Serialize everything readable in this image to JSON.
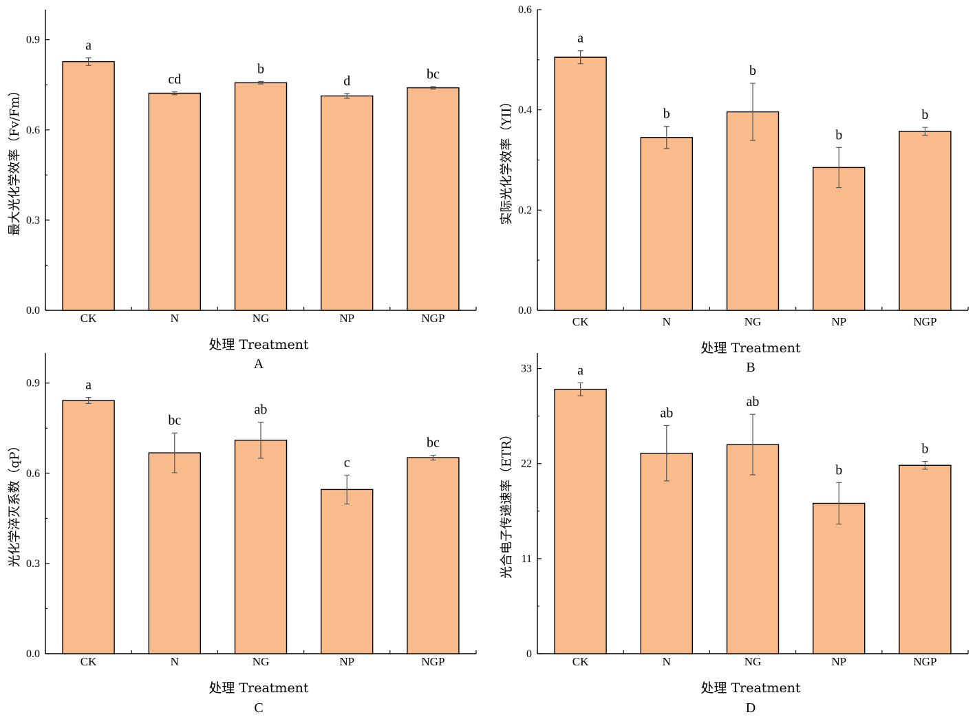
{
  "chart_data": [
    {
      "type": "bar",
      "panel_label": "A",
      "xlabel": "处理 Treatment",
      "ylabel": "最大光化学效率（Fv/Fm）",
      "categories": [
        "CK",
        "N",
        "NG",
        "NP",
        "NGP"
      ],
      "values": [
        0.827,
        0.722,
        0.757,
        0.713,
        0.74
      ],
      "errors": [
        0.013,
        0.005,
        0.004,
        0.008,
        0.004
      ],
      "significance": [
        "a",
        "cd",
        "b",
        "d",
        "bc"
      ],
      "yticks": [
        "0.0",
        "0.3",
        "0.6",
        "0.9"
      ],
      "ylim": [
        0,
        1.0
      ],
      "grid": false
    },
    {
      "type": "bar",
      "panel_label": "B",
      "xlabel": "处理 Treatment",
      "ylabel": "实际光化学效率（YII）",
      "categories": [
        "CK",
        "N",
        "NG",
        "NP",
        "NGP"
      ],
      "values": [
        0.505,
        0.345,
        0.396,
        0.285,
        0.357
      ],
      "errors": [
        0.013,
        0.022,
        0.057,
        0.04,
        0.008
      ],
      "significance": [
        "a",
        "b",
        "b",
        "b",
        "b"
      ],
      "yticks": [
        "0.0",
        "0.2",
        "0.4",
        "0.6"
      ],
      "ylim": [
        0,
        0.6
      ],
      "grid": false
    },
    {
      "type": "bar",
      "panel_label": "C",
      "xlabel": "处理 Treatment",
      "ylabel": "光化学淬灭系数（qP）",
      "categories": [
        "CK",
        "N",
        "NG",
        "NP",
        "NGP"
      ],
      "values": [
        0.842,
        0.668,
        0.71,
        0.546,
        0.652
      ],
      "errors": [
        0.01,
        0.066,
        0.06,
        0.048,
        0.008
      ],
      "significance": [
        "a",
        "bc",
        "ab",
        "c",
        "bc"
      ],
      "yticks": [
        "0.0",
        "0.3",
        "0.6",
        "0.9"
      ],
      "ylim": [
        0,
        1.0
      ],
      "grid": false
    },
    {
      "type": "bar",
      "panel_label": "D",
      "xlabel": "处理 Treatment",
      "ylabel": "光合电子传递速率（ETR）",
      "categories": [
        "CK",
        "N",
        "NG",
        "NP",
        "NGP"
      ],
      "values": [
        30.6,
        23.2,
        24.2,
        17.4,
        21.8
      ],
      "errors": [
        0.75,
        3.2,
        3.5,
        2.4,
        0.45
      ],
      "significance": [
        "a",
        "ab",
        "ab",
        "b",
        "b"
      ],
      "yticks": [
        "0",
        "11",
        "22",
        "33"
      ],
      "ylim": [
        0,
        34.8
      ],
      "grid": false
    }
  ]
}
